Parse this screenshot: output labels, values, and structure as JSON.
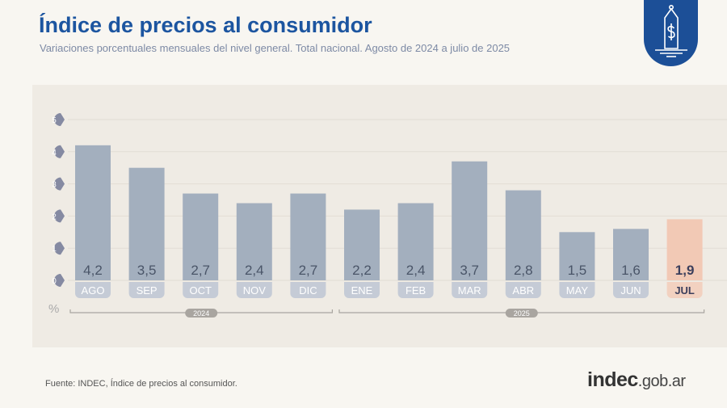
{
  "header": {
    "title": "Índice de precios al consumidor",
    "subtitle": "Variaciones porcentuales mensuales del nivel general. Total nacional. Agosto de 2024 a julio de 2025"
  },
  "badge_icon": "price-tag-dollar-icon",
  "chart_data": {
    "type": "bar",
    "categories": [
      "AGO",
      "SEP",
      "OCT",
      "NOV",
      "DIC",
      "ENE",
      "FEB",
      "MAR",
      "ABR",
      "MAY",
      "JUN",
      "JUL"
    ],
    "values": [
      4.2,
      3.5,
      2.7,
      2.4,
      2.7,
      2.2,
      2.4,
      3.7,
      2.8,
      1.5,
      1.6,
      1.9
    ],
    "value_labels": [
      "4,2",
      "3,5",
      "2,7",
      "2,4",
      "2,7",
      "2,2",
      "2,4",
      "3,7",
      "2,8",
      "1,5",
      "1,6",
      "1,9"
    ],
    "yticks": [
      0,
      1,
      2,
      3,
      4,
      5
    ],
    "ylim": [
      0,
      5
    ],
    "ylabel": "%",
    "grid": true,
    "groups": [
      {
        "label": "2024",
        "from": 0,
        "to": 4
      },
      {
        "label": "2025",
        "from": 5,
        "to": 11
      }
    ],
    "highlight_index": 11,
    "colors": {
      "bar": "#a3afbe",
      "highlight": "#f2c9b5",
      "label_pill": "#c5cbd6",
      "highlight_pill": "#f2d1c0",
      "tick_bubble": "#858aa2",
      "value_text": "#4a5568",
      "highlight_text": "#3c3f5c"
    }
  },
  "footer": {
    "source": "Fuente: INDEC, Índice de precios al consumidor.",
    "logo": {
      "main": "indec",
      "suffix": ".gob.ar"
    }
  }
}
